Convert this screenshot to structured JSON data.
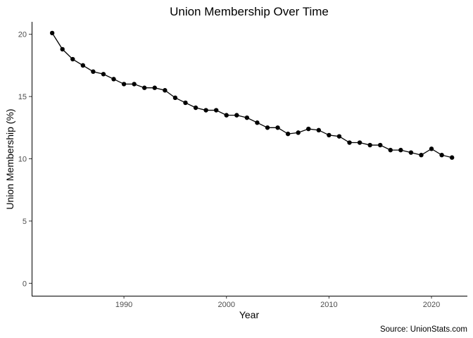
{
  "chart_data": {
    "type": "line",
    "title": "Union Membership Over Time",
    "xlabel": "Year",
    "ylabel": "Union Membership (%)",
    "caption": "Source: UnionStats.com",
    "xlim": [
      1981,
      2023.5
    ],
    "ylim": [
      -1,
      21
    ],
    "xticks": [
      1990,
      2000,
      2010,
      2020
    ],
    "yticks": [
      0,
      5,
      10,
      15,
      20
    ],
    "grid": false,
    "legend": "none",
    "series": [
      {
        "x": [
          1983,
          1984,
          1985,
          1986,
          1987,
          1988,
          1989,
          1990,
          1991,
          1992,
          1993,
          1994,
          1995,
          1996,
          1997,
          1998,
          1999,
          2000,
          2001,
          2002,
          2003,
          2004,
          2005,
          2006,
          2007,
          2008,
          2009,
          2010,
          2011,
          2012,
          2013,
          2014,
          2015,
          2016,
          2017,
          2018,
          2019,
          2020,
          2021,
          2022
        ],
        "values": [
          20.1,
          18.8,
          18.0,
          17.5,
          17.0,
          16.8,
          16.4,
          16.0,
          16.0,
          15.7,
          15.7,
          15.5,
          14.9,
          14.5,
          14.1,
          13.9,
          13.9,
          13.5,
          13.5,
          13.3,
          12.9,
          12.5,
          12.5,
          12.0,
          12.1,
          12.4,
          12.3,
          11.9,
          11.8,
          11.3,
          11.3,
          11.1,
          11.1,
          10.7,
          10.7,
          10.5,
          10.3,
          10.8,
          10.3,
          10.1
        ]
      }
    ]
  }
}
